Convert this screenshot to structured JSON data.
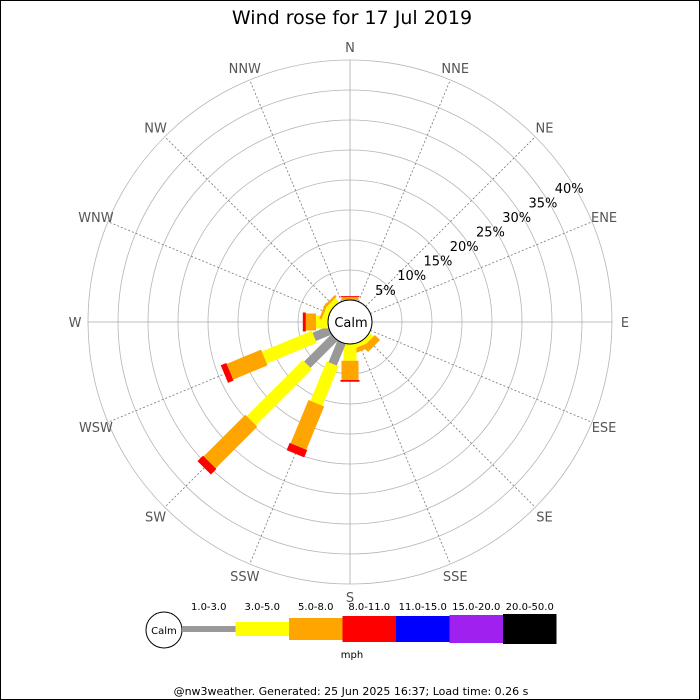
{
  "chart_data": {
    "type": "windrose",
    "title": "Wind rose for 17 Jul 2019",
    "center_label": "Calm",
    "unit_label": "mph",
    "directions": [
      "N",
      "NNE",
      "NE",
      "ENE",
      "E",
      "ESE",
      "SE",
      "SSE",
      "S",
      "SSW",
      "SW",
      "WSW",
      "W",
      "WNW",
      "NW",
      "NNW"
    ],
    "ring_labels": [
      "5%",
      "10%",
      "15%",
      "20%",
      "25%",
      "30%",
      "35%",
      "40%"
    ],
    "rlim": [
      0,
      40
    ],
    "speed_bins": [
      {
        "label": "1.0-3.0",
        "color": "#999999"
      },
      {
        "label": "3.0-5.0",
        "color": "#ffff00"
      },
      {
        "label": "5.0-8.0",
        "color": "#ffa500"
      },
      {
        "label": "8.0-11.0",
        "color": "#ff0000"
      },
      {
        "label": "11.0-15.0",
        "color": "#0000ff"
      },
      {
        "label": "15.0-20.0",
        "color": "#a020f0"
      },
      {
        "label": "20.0-50.0",
        "color": "#000000"
      }
    ],
    "series": [
      {
        "direction": "N",
        "values": [
          0,
          0,
          0.5,
          0.15,
          0,
          0,
          0
        ]
      },
      {
        "direction": "NNE",
        "values": [
          0,
          0,
          0,
          0,
          0,
          0,
          0
        ]
      },
      {
        "direction": "NE",
        "values": [
          0,
          0,
          0,
          0,
          0,
          0,
          0
        ]
      },
      {
        "direction": "ENE",
        "values": [
          0,
          0,
          0,
          0,
          0,
          0,
          0
        ]
      },
      {
        "direction": "E",
        "values": [
          0,
          0,
          0,
          0,
          0,
          0,
          0
        ]
      },
      {
        "direction": "ESE",
        "values": [
          0,
          0,
          0,
          0,
          0,
          0,
          0
        ]
      },
      {
        "direction": "SE",
        "values": [
          0,
          0.8,
          1.2,
          0,
          0,
          0,
          0
        ]
      },
      {
        "direction": "SSE",
        "values": [
          0,
          0.7,
          0.8,
          0,
          0,
          0,
          0
        ]
      },
      {
        "direction": "S",
        "values": [
          0,
          2.8,
          3.2,
          0.3,
          0,
          0,
          0
        ]
      },
      {
        "direction": "SSW",
        "values": [
          3.9,
          7.1,
          7.8,
          1.3,
          0,
          0,
          0
        ]
      },
      {
        "direction": "SW",
        "values": [
          6.4,
          13.2,
          9.8,
          1.3,
          0,
          0,
          0
        ]
      },
      {
        "direction": "WSW",
        "values": [
          2.8,
          9.0,
          6.2,
          1.0,
          0,
          0,
          0
        ]
      },
      {
        "direction": "W",
        "values": [
          0,
          2.0,
          1.7,
          0.5,
          0,
          0,
          0
        ]
      },
      {
        "direction": "WNW",
        "values": [
          0,
          0.9,
          0.4,
          0,
          0,
          0,
          0
        ]
      },
      {
        "direction": "NW",
        "values": [
          0,
          0.9,
          0.4,
          0,
          0,
          0,
          0
        ]
      },
      {
        "direction": "NNW",
        "values": [
          0,
          0,
          0,
          0,
          0,
          0,
          0
        ]
      }
    ],
    "grid": true,
    "legend_position": "bottom"
  },
  "footer": "@nw3weather. Generated: 25 Jun 2025 16:37; Load time: 0.26 s"
}
